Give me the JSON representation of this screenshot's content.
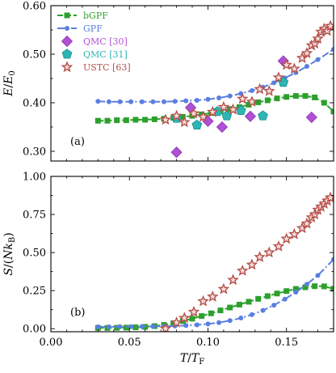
{
  "chart_data": [
    {
      "type": "line",
      "panel_label": "(a)",
      "ylabel": "E/E0",
      "xlabel": "",
      "xlim": [
        0,
        0.18
      ],
      "ylim": [
        0.28,
        0.6
      ],
      "xticks": [
        0.0,
        0.05,
        0.1,
        0.15
      ],
      "xtick_labels": [
        "",
        "",
        "",
        ""
      ],
      "yticks": [
        0.3,
        0.4,
        0.5,
        0.6
      ],
      "ytick_labels": [
        "0.30",
        "0.40",
        "0.50",
        "0.60"
      ],
      "legend_position": "top-left",
      "series": [
        {
          "name": "bGPF",
          "style": "dashed",
          "marker": "square",
          "color": "#2ca02c",
          "x": [
            0.03,
            0.036,
            0.042,
            0.048,
            0.054,
            0.06,
            0.066,
            0.072,
            0.078,
            0.084,
            0.09,
            0.096,
            0.102,
            0.108,
            0.114,
            0.12,
            0.126,
            0.132,
            0.138,
            0.144,
            0.15,
            0.156,
            0.162,
            0.168,
            0.174,
            0.18
          ],
          "y": [
            0.363,
            0.363,
            0.364,
            0.364,
            0.365,
            0.365,
            0.366,
            0.367,
            0.369,
            0.371,
            0.373,
            0.376,
            0.379,
            0.383,
            0.387,
            0.391,
            0.396,
            0.401,
            0.405,
            0.409,
            0.412,
            0.414,
            0.414,
            0.411,
            0.4,
            0.382
          ]
        },
        {
          "name": "GPF",
          "style": "dashdot",
          "marker": "circle",
          "color": "#5b7fe0",
          "x": [
            0.03,
            0.037,
            0.044,
            0.051,
            0.058,
            0.065,
            0.072,
            0.079,
            0.086,
            0.093,
            0.1,
            0.107,
            0.114,
            0.121,
            0.128,
            0.135,
            0.142,
            0.149,
            0.156,
            0.163,
            0.17,
            0.18
          ],
          "y": [
            0.403,
            0.402,
            0.402,
            0.402,
            0.402,
            0.402,
            0.402,
            0.403,
            0.404,
            0.405,
            0.407,
            0.41,
            0.414,
            0.419,
            0.425,
            0.432,
            0.441,
            0.451,
            0.462,
            0.475,
            0.489,
            0.51
          ]
        },
        {
          "name": "QMC [30]",
          "style": "none",
          "marker": "diamond",
          "color": "#b14fd6",
          "x": [
            0.08,
            0.089,
            0.1,
            0.109,
            0.127,
            0.148,
            0.166
          ],
          "y": [
            0.298,
            0.39,
            0.362,
            0.35,
            0.372,
            0.486,
            0.37
          ]
        },
        {
          "name": "QMC [31]",
          "style": "none",
          "marker": "pentagon",
          "color": "#2cb5b5",
          "x": [
            0.08,
            0.093,
            0.106,
            0.112,
            0.121,
            0.135,
            0.148
          ],
          "y": [
            0.368,
            0.354,
            0.382,
            0.373,
            0.384,
            0.373,
            0.442
          ]
        },
        {
          "name": "USTC [63]",
          "style": "none",
          "marker": "star",
          "color": "#b5504a",
          "x": [
            0.073,
            0.08,
            0.085,
            0.091,
            0.097,
            0.103,
            0.11,
            0.116,
            0.122,
            0.128,
            0.133,
            0.139,
            0.145,
            0.15,
            0.155,
            0.16,
            0.163,
            0.166,
            0.168,
            0.17,
            0.172,
            0.174,
            0.176,
            0.178
          ],
          "y": [
            0.365,
            0.373,
            0.36,
            0.378,
            0.371,
            0.381,
            0.391,
            0.386,
            0.408,
            0.402,
            0.428,
            0.424,
            0.452,
            0.478,
            0.47,
            0.492,
            0.502,
            0.518,
            0.522,
            0.532,
            0.546,
            0.552,
            0.548,
            0.558
          ]
        }
      ]
    },
    {
      "type": "line",
      "panel_label": "(b)",
      "ylabel": "S/(NkB)",
      "xlabel": "T/TF",
      "xlim": [
        0,
        0.18
      ],
      "ylim": [
        -0.02,
        1.0
      ],
      "xticks": [
        0.0,
        0.05,
        0.1,
        0.15
      ],
      "xtick_labels": [
        "0.00",
        "0.05",
        "0.10",
        "0.15"
      ],
      "yticks": [
        0.0,
        0.25,
        0.5,
        0.75,
        1.0
      ],
      "ytick_labels": [
        "0.00",
        "0.25",
        "0.50",
        "0.75",
        "1.00"
      ],
      "series": [
        {
          "name": "bGPF",
          "style": "dashed",
          "marker": "square",
          "color": "#2ca02c",
          "x": [
            0.03,
            0.036,
            0.042,
            0.048,
            0.054,
            0.06,
            0.066,
            0.072,
            0.078,
            0.084,
            0.09,
            0.096,
            0.102,
            0.108,
            0.114,
            0.12,
            0.126,
            0.132,
            0.138,
            0.144,
            0.15,
            0.156,
            0.162,
            0.168,
            0.174,
            0.18
          ],
          "y": [
            0.005,
            0.005,
            0.006,
            0.007,
            0.009,
            0.012,
            0.017,
            0.025,
            0.036,
            0.05,
            0.066,
            0.083,
            0.101,
            0.12,
            0.139,
            0.158,
            0.177,
            0.196,
            0.214,
            0.231,
            0.247,
            0.261,
            0.272,
            0.279,
            0.278,
            0.262
          ]
        },
        {
          "name": "GPF",
          "style": "dashdot",
          "marker": "circle",
          "color": "#5b7fe0",
          "x": [
            0.03,
            0.037,
            0.044,
            0.051,
            0.058,
            0.065,
            0.072,
            0.079,
            0.086,
            0.093,
            0.1,
            0.107,
            0.114,
            0.121,
            0.128,
            0.135,
            0.142,
            0.149,
            0.156,
            0.163,
            0.17,
            0.18
          ],
          "y": [
            0.012,
            0.012,
            0.013,
            0.013,
            0.014,
            0.015,
            0.016,
            0.018,
            0.021,
            0.025,
            0.031,
            0.04,
            0.053,
            0.07,
            0.092,
            0.12,
            0.154,
            0.194,
            0.24,
            0.292,
            0.35,
            0.455
          ]
        },
        {
          "name": "USTC [63]",
          "style": "none",
          "marker": "star",
          "color": "#b5504a",
          "x": [
            0.073,
            0.08,
            0.085,
            0.091,
            0.097,
            0.103,
            0.11,
            0.116,
            0.122,
            0.128,
            0.133,
            0.139,
            0.145,
            0.15,
            0.155,
            0.16,
            0.163,
            0.166,
            0.168,
            0.17,
            0.172,
            0.174,
            0.176,
            0.178
          ],
          "y": [
            0.0,
            0.04,
            0.07,
            0.11,
            0.18,
            0.21,
            0.26,
            0.32,
            0.38,
            0.42,
            0.47,
            0.5,
            0.54,
            0.59,
            0.62,
            0.66,
            0.69,
            0.73,
            0.75,
            0.78,
            0.8,
            0.82,
            0.84,
            0.86
          ]
        }
      ]
    }
  ]
}
